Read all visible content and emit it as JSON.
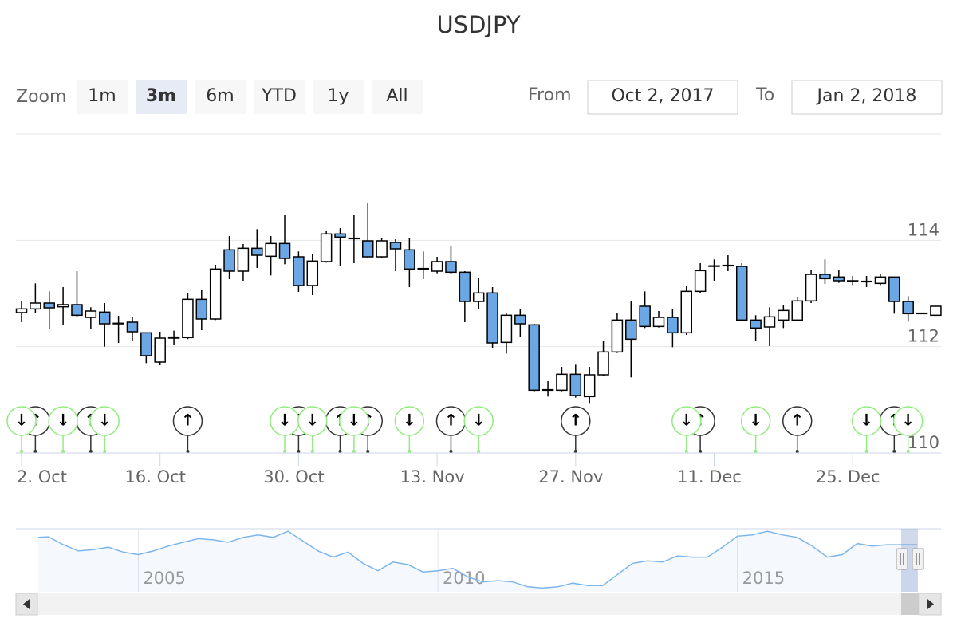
{
  "chart_data": {
    "type": "candlestick",
    "title": "USDJPY",
    "range_selector": {
      "label": "Zoom",
      "buttons": [
        "1m",
        "3m",
        "6m",
        "YTD",
        "1y",
        "All"
      ],
      "selected": 1,
      "from_label": "From",
      "from": "Oct 2, 2017",
      "to_label": "To",
      "to": "Jan 2, 2018"
    },
    "categories": [
      "2. Oct",
      null,
      null,
      null,
      null,
      null,
      null,
      null,
      null,
      null,
      "16. Oct",
      null,
      null,
      null,
      null,
      null,
      null,
      null,
      null,
      null,
      "30. Oct",
      null,
      null,
      null,
      null,
      null,
      null,
      null,
      null,
      null,
      "13. Nov",
      null,
      null,
      null,
      null,
      null,
      null,
      null,
      null,
      null,
      "27. Nov",
      null,
      null,
      null,
      null,
      null,
      null,
      null,
      null,
      null,
      "11. Dec",
      null,
      null,
      null,
      null,
      null,
      null,
      null,
      null,
      null,
      "25. Dec",
      null,
      null,
      null,
      null,
      null,
      null
    ],
    "open": [
      112.64,
      112.71,
      112.82,
      112.75,
      112.79,
      112.55,
      112.65,
      112.44,
      112.46,
      112.26,
      111.71,
      112.16,
      112.17,
      112.89,
      112.52,
      113.82,
      113.42,
      113.85,
      113.7,
      113.94,
      113.69,
      113.15,
      113.6,
      114.12,
      114.04,
      113.99,
      113.69,
      113.96,
      113.82,
      113.47,
      113.42,
      113.6,
      113.4,
      112.85,
      113.01,
      112.08,
      112.59,
      112.41,
      111.18,
      111.18,
      111.48,
      111.06,
      111.47,
      111.9,
      112.5,
      112.76,
      112.38,
      112.55,
      112.26,
      113.04,
      113.51,
      113.52,
      113.51,
      112.5,
      112.37,
      112.5,
      112.5,
      112.86,
      113.36,
      113.31,
      113.24,
      113.22,
      113.19,
      113.31,
      112.85,
      112.62,
      112.59
    ],
    "high": [
      112.85,
      113.19,
      113.04,
      113.12,
      113.42,
      112.74,
      112.82,
      112.58,
      112.55,
      112.27,
      112.28,
      112.3,
      113.01,
      113.06,
      113.54,
      114.08,
      113.93,
      114.21,
      114.08,
      114.47,
      113.79,
      113.75,
      114.17,
      114.23,
      114.47,
      114.71,
      114.05,
      114.02,
      114.05,
      113.79,
      113.69,
      113.9,
      113.42,
      113.3,
      113.12,
      112.64,
      112.7,
      112.43,
      111.35,
      111.62,
      111.66,
      111.62,
      112.11,
      112.64,
      112.85,
      113.04,
      112.67,
      112.7,
      113.15,
      113.57,
      113.64,
      113.72,
      113.57,
      112.59,
      112.74,
      112.79,
      112.94,
      113.45,
      113.64,
      113.45,
      113.33,
      113.33,
      113.37,
      113.31,
      112.95,
      112.63,
      112.77
    ],
    "low": [
      112.46,
      112.64,
      112.34,
      112.41,
      112.55,
      112.34,
      112.0,
      112.07,
      112.1,
      111.69,
      111.65,
      112.04,
      112.14,
      112.31,
      112.5,
      113.27,
      113.24,
      113.48,
      113.34,
      113.55,
      113.03,
      112.97,
      113.58,
      113.52,
      113.57,
      113.67,
      113.67,
      113.42,
      113.12,
      113.27,
      113.38,
      113.36,
      112.46,
      112.7,
      111.98,
      111.87,
      112.19,
      111.15,
      111.06,
      111.16,
      111.04,
      110.94,
      111.45,
      111.88,
      111.42,
      112.35,
      112.36,
      111.99,
      112.22,
      113.01,
      113.24,
      113.42,
      112.48,
      112.1,
      112.01,
      112.35,
      112.48,
      112.82,
      113.18,
      113.2,
      113.16,
      113.12,
      113.16,
      112.62,
      112.47,
      112.62,
      112.58
    ],
    "close": [
      112.71,
      112.82,
      112.73,
      112.79,
      112.59,
      112.67,
      112.43,
      112.43,
      112.28,
      111.83,
      112.16,
      112.18,
      112.89,
      112.52,
      113.46,
      113.42,
      113.85,
      113.72,
      113.94,
      113.66,
      113.15,
      113.61,
      114.12,
      114.06,
      114.03,
      113.69,
      113.99,
      113.84,
      113.46,
      113.46,
      113.6,
      113.4,
      112.85,
      113.01,
      112.07,
      112.59,
      112.43,
      111.18,
      111.19,
      111.48,
      111.08,
      111.47,
      111.9,
      112.5,
      112.14,
      112.38,
      112.55,
      112.26,
      113.04,
      113.43,
      113.52,
      113.53,
      112.5,
      112.35,
      112.56,
      112.68,
      112.86,
      113.36,
      113.28,
      113.24,
      113.23,
      113.23,
      113.31,
      112.85,
      112.62,
      112.63,
      112.76
    ],
    "up_color": "#ffffff",
    "down_color": "#6aa7e4",
    "ylim": [
      110,
      116
    ],
    "yticks": [
      110,
      112,
      114
    ],
    "grid": true,
    "flags": [
      {
        "title": "↑",
        "color": "#333333",
        "x": [
          1,
          5,
          12,
          20,
          23,
          25,
          31,
          40,
          49,
          56,
          63
        ]
      },
      {
        "title": "↓",
        "color": "#90ed7d",
        "x": [
          0,
          3,
          6,
          19,
          21,
          24,
          28,
          33,
          48,
          53,
          61,
          64
        ]
      }
    ],
    "navigator": {
      "type": "line",
      "color": "#7cb5ec",
      "x": [
        2003.33,
        2003.5,
        2003.75,
        2004,
        2004.25,
        2004.5,
        2004.75,
        2005,
        2005.25,
        2005.5,
        2005.75,
        2006,
        2006.25,
        2006.5,
        2006.75,
        2007,
        2007.25,
        2007.5,
        2007.75,
        2008,
        2008.25,
        2008.5,
        2008.75,
        2009,
        2009.25,
        2009.5,
        2009.75,
        2010,
        2010.25,
        2010.5,
        2010.75,
        2011,
        2011.25,
        2011.5,
        2011.75,
        2012,
        2012.25,
        2012.5,
        2012.75,
        2013,
        2013.25,
        2013.5,
        2013.75,
        2014,
        2014.25,
        2014.5,
        2014.75,
        2015,
        2015.25,
        2015.5,
        2015.75,
        2016,
        2016.25,
        2016.5,
        2016.75,
        2017,
        2017.25,
        2017.5,
        2017.75,
        2018
      ],
      "values": [
        118,
        118.5,
        112,
        107,
        108,
        110,
        106,
        104,
        107,
        111,
        114,
        117,
        116,
        114,
        118,
        120,
        118,
        123,
        115,
        107,
        102,
        106,
        97,
        91,
        98,
        96,
        90,
        91,
        93,
        86,
        82,
        83,
        82,
        78,
        77,
        78,
        81,
        79,
        79,
        88,
        97,
        99,
        98,
        103,
        102,
        102,
        110,
        119,
        120,
        123,
        120,
        118,
        111,
        102,
        104,
        113,
        111,
        112,
        112,
        112
      ],
      "xlim": [
        2003.33,
        2018
      ],
      "xticks": [
        2005,
        2010,
        2015
      ],
      "ylim": [
        74,
        125
      ]
    }
  }
}
